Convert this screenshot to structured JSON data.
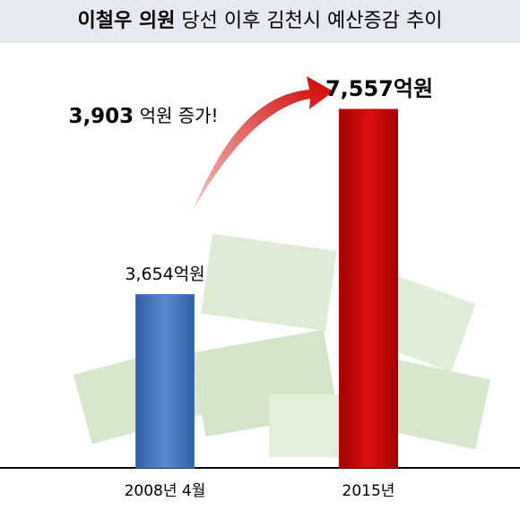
{
  "chart_data": {
    "type": "bar",
    "title": {
      "emphasis": "이철우 의원",
      "rest": "당선 이후 김천시 예산증감 추이"
    },
    "annotation": {
      "number": "3,903",
      "text": "억원 증가!"
    },
    "categories": [
      "2008년 4월",
      "2015년"
    ],
    "values": [
      3654,
      7557
    ],
    "value_labels": [
      "3,654억원",
      "7,557억원"
    ],
    "colors": [
      "#4a78c0",
      "#c00000"
    ],
    "ylim": [
      0,
      8000
    ]
  }
}
